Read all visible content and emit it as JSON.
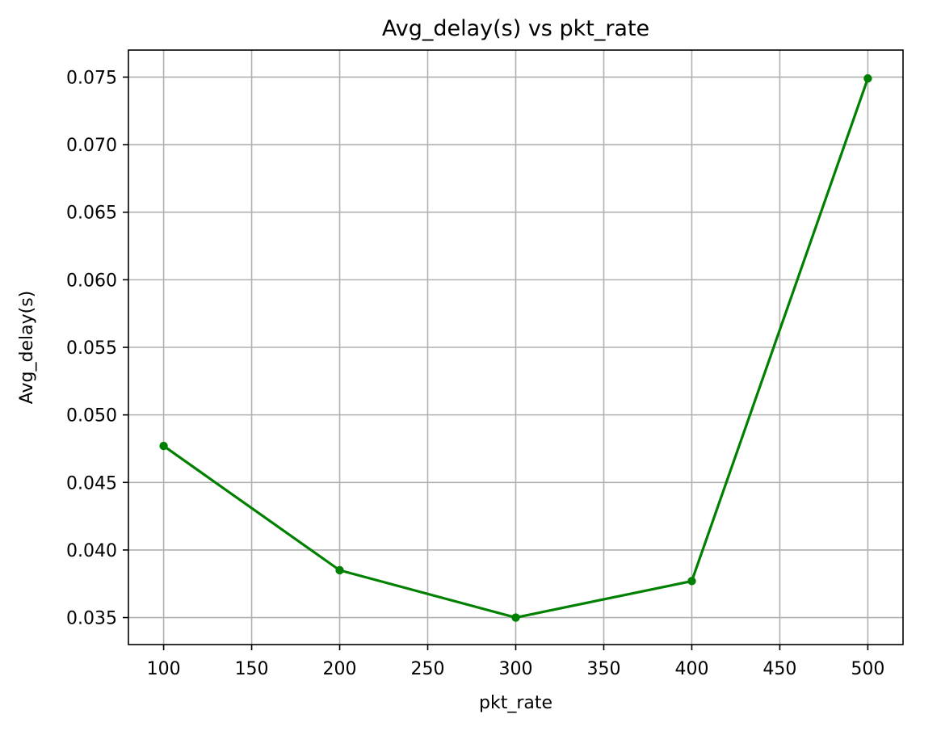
{
  "chart_data": {
    "type": "line",
    "title": "Avg_delay(s) vs pkt_rate",
    "xlabel": "pkt_rate",
    "ylabel": "Avg_delay(s)",
    "x": [
      100,
      200,
      300,
      400,
      500
    ],
    "series": [
      {
        "values": [
          0.0477,
          0.0385,
          0.035,
          0.0377,
          0.0749
        ],
        "color": "#008000",
        "marker": "circle"
      }
    ],
    "xlim": [
      80,
      520
    ],
    "ylim": [
      0.033,
      0.077
    ],
    "xticks": [
      100,
      150,
      200,
      250,
      300,
      350,
      400,
      450,
      500
    ],
    "xtick_labels": [
      "100",
      "150",
      "200",
      "250",
      "300",
      "350",
      "400",
      "450",
      "500"
    ],
    "yticks": [
      0.035,
      0.04,
      0.045,
      0.05,
      0.055,
      0.06,
      0.065,
      0.07,
      0.075
    ],
    "ytick_labels": [
      "0.035",
      "0.040",
      "0.045",
      "0.050",
      "0.055",
      "0.060",
      "0.065",
      "0.070",
      "0.075"
    ],
    "grid": true,
    "legend": "none"
  }
}
